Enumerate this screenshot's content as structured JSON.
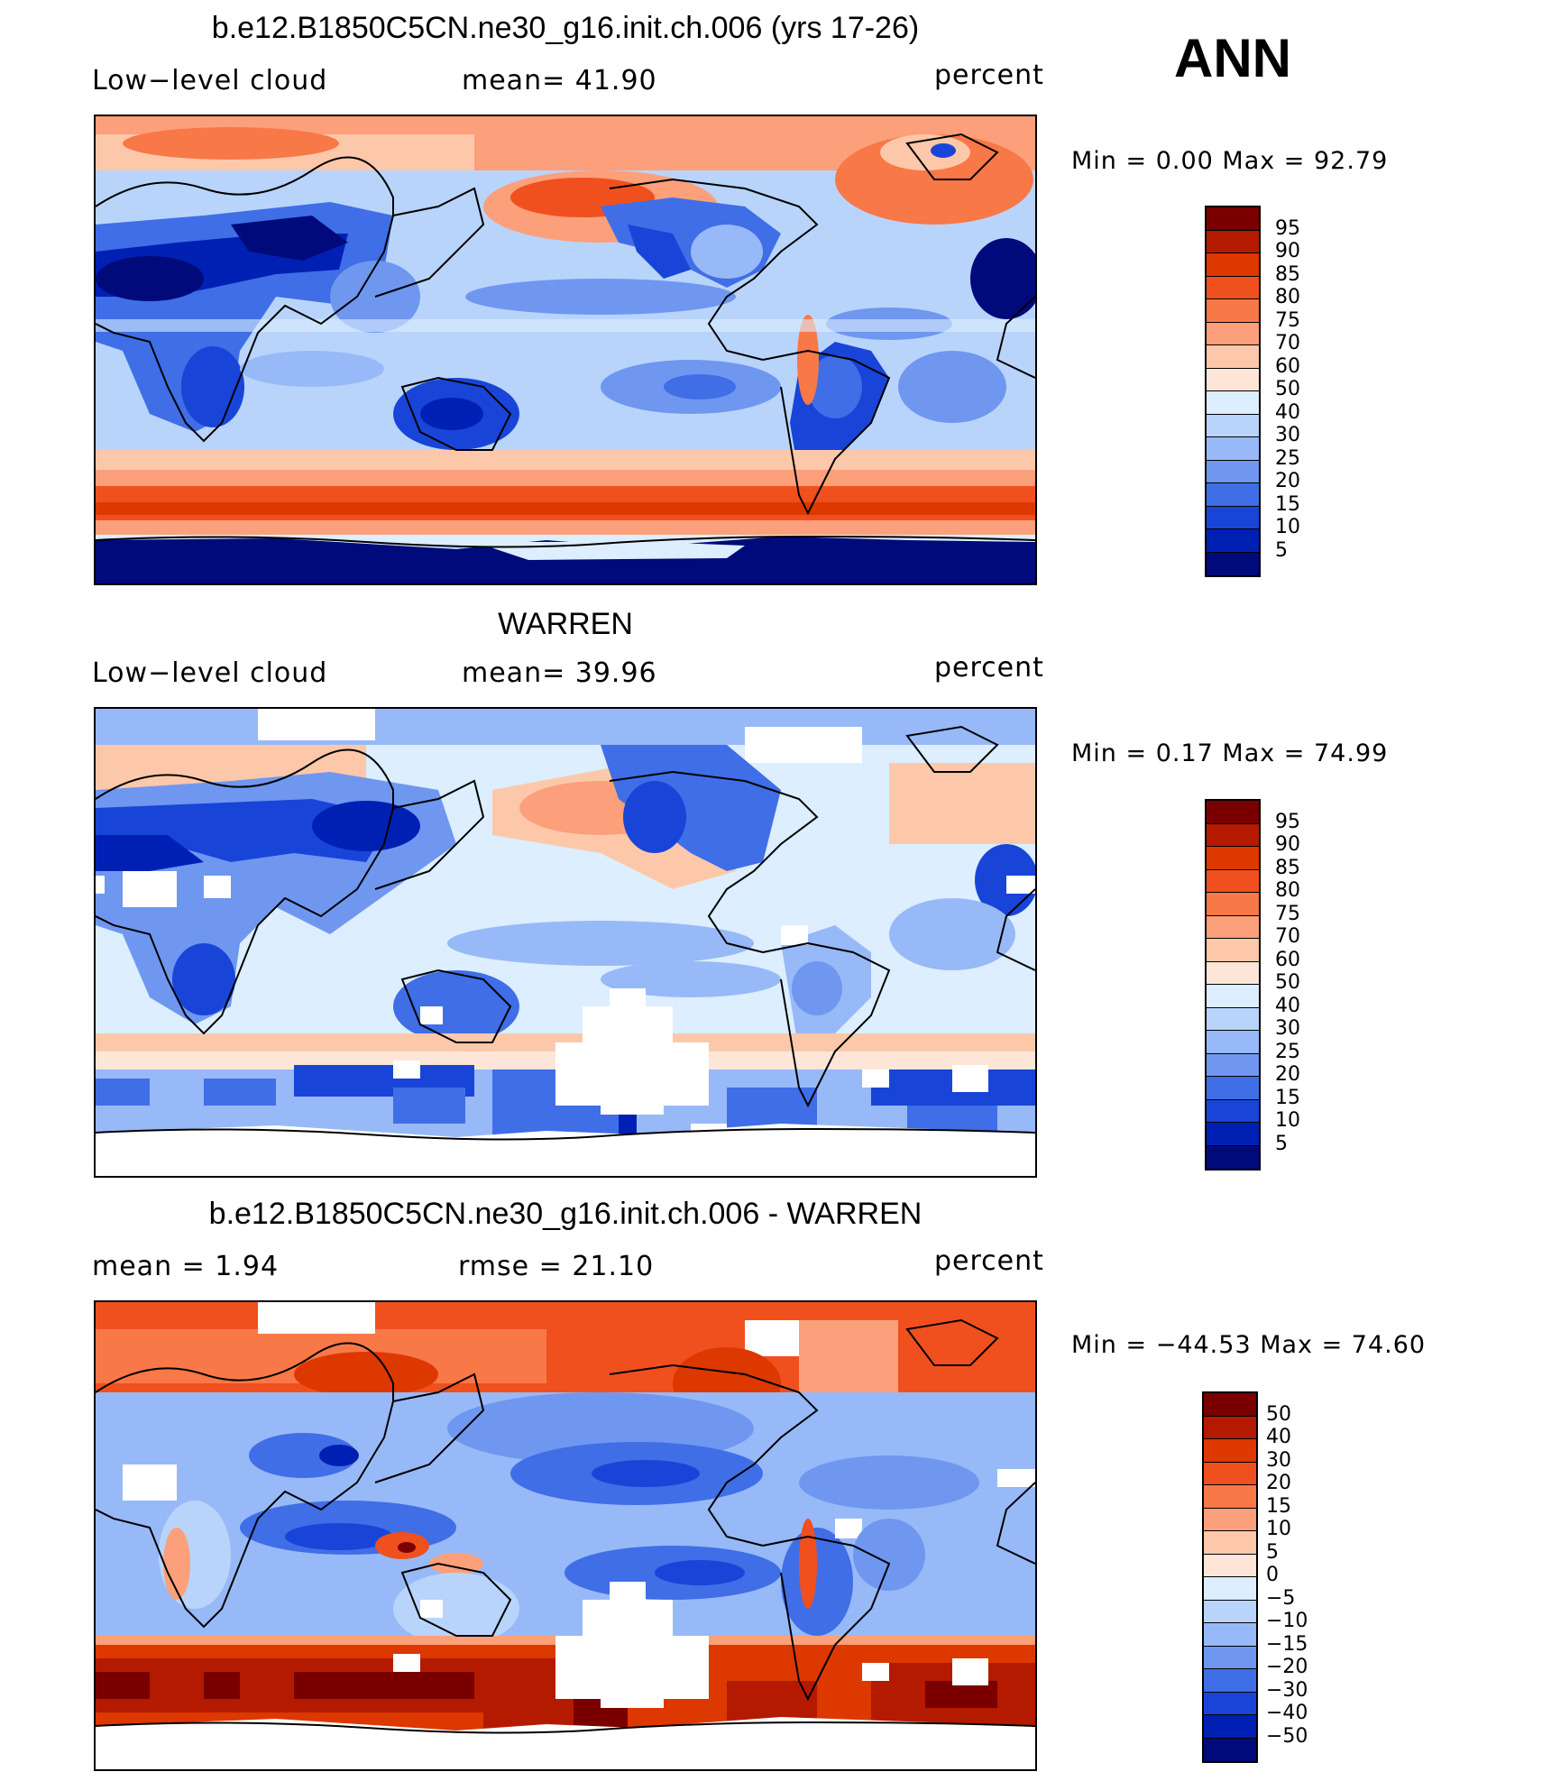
{
  "season": "ANN",
  "panels": [
    {
      "title": "b.e12.B1850C5CN.ne30_g16.init.ch.006 (yrs 17-26)",
      "left_label": "Low−level  cloud",
      "center_label": "mean=   41.90",
      "units": "percent",
      "minmax": "Min  =     0.00  Max  =    92.79",
      "colorbar_ticks": [
        "95",
        "90",
        "85",
        "80",
        "75",
        "70",
        "60",
        "50",
        "40",
        "30",
        "25",
        "20",
        "15",
        "10",
        "5"
      ],
      "colors": [
        "#7a0000",
        "#b41a00",
        "#dc3800",
        "#f0501e",
        "#f87848",
        "#fba07a",
        "#fdc8aa",
        "#fde6d8",
        "#dceeff",
        "#b9d4fb",
        "#98b9f7",
        "#6f97f0",
        "#3f6ee6",
        "#1845d8",
        "#0020b4",
        "#000a7a"
      ]
    },
    {
      "title": "WARREN",
      "left_label": "Low−level  cloud",
      "center_label": "mean=   39.96",
      "units": "percent",
      "minmax": "Min  =     0.17  Max  =    74.99",
      "colorbar_ticks": [
        "95",
        "90",
        "85",
        "80",
        "75",
        "70",
        "60",
        "50",
        "40",
        "30",
        "25",
        "20",
        "15",
        "10",
        "5"
      ],
      "colors": [
        "#7a0000",
        "#b41a00",
        "#dc3800",
        "#f0501e",
        "#f87848",
        "#fba07a",
        "#fdc8aa",
        "#fde6d8",
        "#dceeff",
        "#b9d4fb",
        "#98b9f7",
        "#6f97f0",
        "#3f6ee6",
        "#1845d8",
        "#0020b4",
        "#000a7a"
      ]
    },
    {
      "title": "b.e12.B1850C5CN.ne30_g16.init.ch.006 - WARREN",
      "left_label": "mean  =     1.94",
      "center_label": "rmse  =    21.10",
      "units": "percent",
      "minmax": "Min  = −44.53  Max  =    74.60",
      "colorbar_ticks": [
        "50",
        "40",
        "30",
        "20",
        "15",
        "10",
        "5",
        "0",
        "−5",
        "−10",
        "−15",
        "−20",
        "−30",
        "−40",
        "−50"
      ],
      "colors": [
        "#7a0000",
        "#b41a00",
        "#dc3800",
        "#f0501e",
        "#f87848",
        "#fba07a",
        "#fdc8aa",
        "#fde6d8",
        "#dceeff",
        "#b9d4fb",
        "#98b9f7",
        "#6f97f0",
        "#3f6ee6",
        "#1845d8",
        "#0020b4",
        "#000a7a"
      ]
    }
  ]
}
